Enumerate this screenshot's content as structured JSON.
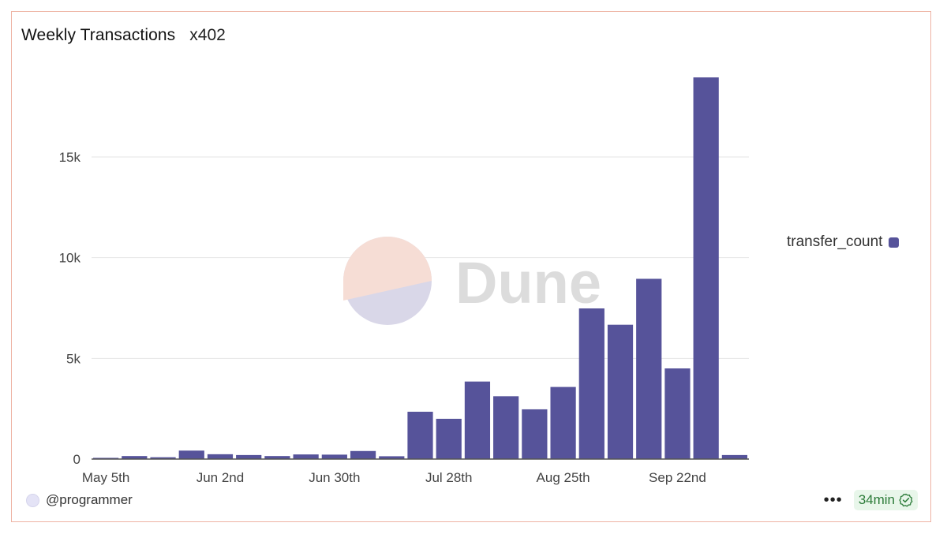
{
  "header": {
    "title": "Weekly Transactions",
    "subtitle": "x402"
  },
  "legend": {
    "label": "transfer_count"
  },
  "footer": {
    "username": "@programmer",
    "freshness": "34min",
    "more_label": "•••"
  },
  "watermark": {
    "text": "Dune"
  },
  "colors": {
    "bar": "#56539a",
    "border": "#eeb3a3",
    "grid": "#e6e6e6",
    "freshness_bg": "#e8f6ea",
    "freshness_text": "#2e7d3b"
  },
  "icons": {
    "more": "more-horizontal-icon",
    "freshness": "check-circle-icon"
  },
  "chart_data": {
    "type": "bar",
    "title": "Weekly Transactions",
    "series": [
      {
        "name": "transfer_count",
        "values": [
          60,
          150,
          90,
          420,
          240,
          200,
          150,
          230,
          220,
          400,
          140,
          2350,
          2000,
          3850,
          3120,
          2470,
          3580,
          7480,
          6670,
          8950,
          4500,
          18950,
          200
        ]
      }
    ],
    "xtick_labels": [
      "May 5th",
      "Jun 2nd",
      "Jun 30th",
      "Jul 28th",
      "Aug 25th",
      "Sep 22nd"
    ],
    "xtick_positions": [
      0,
      4,
      8,
      12,
      16,
      20
    ],
    "yticks": [
      0,
      5000,
      10000,
      15000
    ],
    "ytick_labels": [
      "0",
      "5k",
      "10k",
      "15k"
    ],
    "ylim": [
      0,
      19000
    ],
    "grid": true,
    "legend_position": "right"
  }
}
